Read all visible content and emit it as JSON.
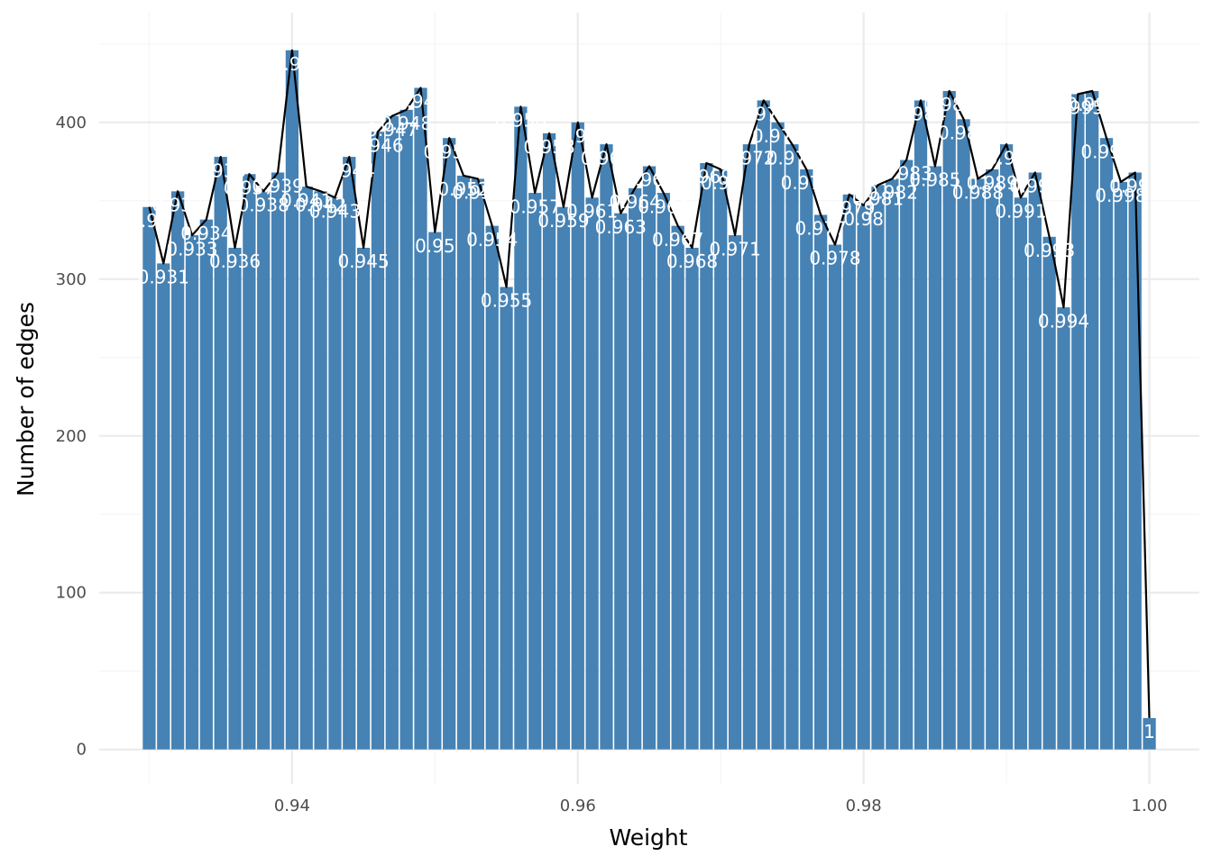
{
  "chart_data": {
    "type": "bar",
    "title": "",
    "xlabel": "Weight",
    "ylabel": "Number of edges",
    "xlim": [
      0.9265,
      1.0035
    ],
    "ylim": [
      -22,
      470
    ],
    "x_ticks": [
      0.94,
      0.96,
      0.98,
      1.0
    ],
    "x_tick_labels": [
      "0.94",
      "0.96",
      "0.98",
      "1.00"
    ],
    "y_ticks": [
      0,
      100,
      200,
      300,
      400
    ],
    "y_tick_labels": [
      "0",
      "100",
      "200",
      "300",
      "400"
    ],
    "grid": true,
    "legend": "none",
    "bar_width": 0.0009,
    "x": [
      0.93,
      0.931,
      0.932,
      0.933,
      0.934,
      0.935,
      0.936,
      0.937,
      0.938,
      0.939,
      0.94,
      0.941,
      0.942,
      0.943,
      0.944,
      0.945,
      0.946,
      0.947,
      0.948,
      0.949,
      0.95,
      0.951,
      0.952,
      0.953,
      0.954,
      0.955,
      0.956,
      0.957,
      0.958,
      0.959,
      0.96,
      0.961,
      0.962,
      0.963,
      0.964,
      0.965,
      0.966,
      0.967,
      0.968,
      0.969,
      0.97,
      0.971,
      0.972,
      0.973,
      0.974,
      0.975,
      0.976,
      0.977,
      0.978,
      0.979,
      0.98,
      0.981,
      0.982,
      0.983,
      0.984,
      0.985,
      0.986,
      0.987,
      0.988,
      0.989,
      0.99,
      0.991,
      0.992,
      0.993,
      0.994,
      0.995,
      0.996,
      0.997,
      0.998,
      0.999,
      1.0
    ],
    "values": [
      346,
      310,
      356,
      328,
      338,
      378,
      320,
      367,
      356,
      368,
      446,
      359,
      356,
      352,
      378,
      320,
      394,
      404,
      408,
      422,
      330,
      390,
      366,
      364,
      334,
      295,
      410,
      355,
      393,
      346,
      400,
      352,
      386,
      342,
      358,
      372,
      355,
      334,
      320,
      374,
      370,
      328,
      386,
      414,
      400,
      386,
      370,
      341,
      322,
      354,
      347,
      360,
      364,
      376,
      414,
      372,
      420,
      402,
      364,
      370,
      386,
      352,
      368,
      327,
      282,
      418,
      420,
      390,
      362,
      368,
      20
    ],
    "labels": [
      "0.93",
      "0.931",
      "0.932",
      "0.933",
      "0.934",
      "0.935",
      "0.936",
      "0.937",
      "0.938",
      "0.939",
      "0.94",
      "0.941",
      "0.942",
      "0.943",
      "0.944",
      "0.945",
      "0.946",
      "0.947",
      "0.948",
      "0.949",
      "0.95",
      "0.951",
      "0.952",
      "0.953",
      "0.954",
      "0.955",
      "0.956",
      "0.957",
      "0.958",
      "0.959",
      "0.96",
      "0.961",
      "0.962",
      "0.963",
      "0.964",
      "0.965",
      "0.966",
      "0.967",
      "0.968",
      "0.969",
      "0.97",
      "0.971",
      "0.972",
      "0.973",
      "0.974",
      "0.975",
      "0.976",
      "0.977",
      "0.978",
      "0.979",
      "0.98",
      "0.981",
      "0.982",
      "0.983",
      "0.984",
      "0.985",
      "0.986",
      "0.987",
      "0.988",
      "0.989",
      "0.99",
      "0.991",
      "0.992",
      "0.993",
      "0.994",
      "0.995",
      "0.996",
      "0.997",
      "0.998",
      "0.999",
      "1"
    ],
    "colors": {
      "bar": "#4682b4",
      "line": "#000000",
      "grid_major": "#ebebeb",
      "grid_minor": "#f5f5f5",
      "label": "#ffffff"
    }
  }
}
